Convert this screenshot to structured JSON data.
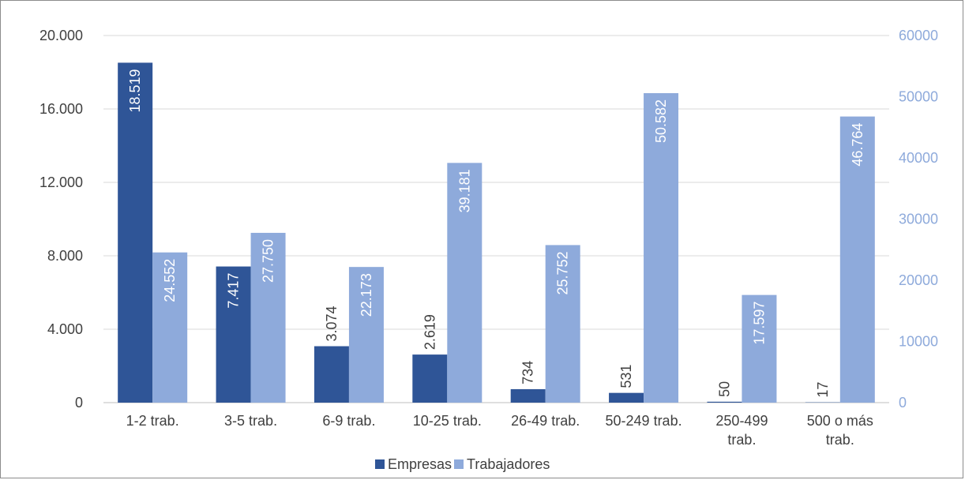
{
  "chart_data": {
    "type": "bar",
    "title": "",
    "xlabel": "",
    "ylabel": "",
    "categories": [
      [
        "1-2 trab."
      ],
      [
        "3-5 trab."
      ],
      [
        "6-9 trab."
      ],
      [
        "10-25 trab."
      ],
      [
        "26-49 trab."
      ],
      [
        "50-249 trab."
      ],
      [
        "250-499",
        "trab."
      ],
      [
        "500 o más",
        "trab."
      ]
    ],
    "series": [
      {
        "name": "Empresas",
        "axis": "left",
        "color": "#2f5597",
        "values": [
          18519,
          7417,
          3074,
          2619,
          734,
          531,
          50,
          17
        ],
        "labels": [
          "18.519",
          "7.417",
          "3.074",
          "2.619",
          "734",
          "531",
          "50",
          "17"
        ]
      },
      {
        "name": "Trabajadores",
        "axis": "right",
        "color": "#8eaadb",
        "values": [
          24552,
          27750,
          22173,
          39181,
          25752,
          50582,
          17597,
          46764
        ],
        "labels": [
          "24.552",
          "27.750",
          "22.173",
          "39.181",
          "25.752",
          "50.582",
          "17.597",
          "46.764"
        ]
      }
    ],
    "y_left": {
      "range": [
        0,
        20000
      ],
      "ticks": [
        0,
        4000,
        8000,
        12000,
        16000,
        20000
      ],
      "tick_labels": [
        "0",
        "4.000",
        "8.000",
        "12.000",
        "16.000",
        "20.000"
      ],
      "color": "#404040"
    },
    "y_right": {
      "range": [
        0,
        60000
      ],
      "ticks": [
        0,
        10000,
        20000,
        30000,
        40000,
        50000,
        60000
      ],
      "tick_labels": [
        "0",
        "10000",
        "20000",
        "30000",
        "40000",
        "50000",
        "60000"
      ],
      "color": "#8eaadb"
    },
    "grid": true,
    "legend_position": "bottom",
    "legend": [
      "Empresas",
      "Trabajadores"
    ]
  }
}
